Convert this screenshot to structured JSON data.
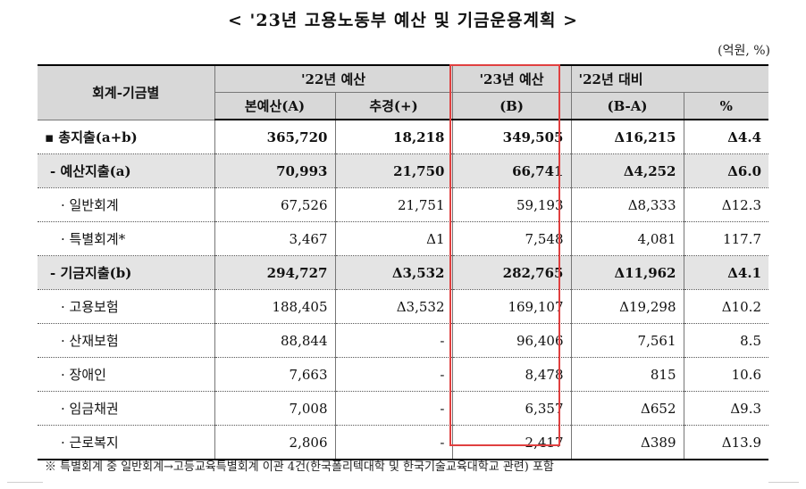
{
  "title": "< '23년 고용노동부 예산 및 기금운용계획 >",
  "unit": "(억원, %)",
  "header": {
    "row_label": "회계-기금별",
    "budget22": "'22년 예산",
    "main": "본예산(A)",
    "supplementary": "추경(+)",
    "budget23": "'23년 예산",
    "budget23_sub": "(B)",
    "compare": "'22년 대비",
    "diff": "(B-A)",
    "pct": "%"
  },
  "rows": [
    {
      "label": "▪ 총지출(a+b)",
      "main": "365,720",
      "supp": "18,218",
      "b23": "349,505",
      "diff": "Δ16,215",
      "pct": "Δ4.4"
    },
    {
      "label": "- 예산지출(a)",
      "main": "70,993",
      "supp": "21,750",
      "b23": "66,741",
      "diff": "Δ4,252",
      "pct": "Δ6.0"
    },
    {
      "label": "· 일반회계",
      "main": "67,526",
      "supp": "21,751",
      "b23": "59,193",
      "diff": "Δ8,333",
      "pct": "Δ12.3"
    },
    {
      "label": "· 특별회계*",
      "main": "3,467",
      "supp": "Δ1",
      "b23": "7,548",
      "diff": "4,081",
      "pct": "117.7"
    },
    {
      "label": "- 기금지출(b)",
      "main": "294,727",
      "supp": "Δ3,532",
      "b23": "282,765",
      "diff": "Δ11,962",
      "pct": "Δ4.1"
    },
    {
      "label": "· 고용보험",
      "main": "188,405",
      "supp": "Δ3,532",
      "b23": "169,107",
      "diff": "Δ19,298",
      "pct": "Δ10.2"
    },
    {
      "label": "· 산재보험",
      "main": "88,844",
      "supp": "-",
      "b23": "96,406",
      "diff": "7,561",
      "pct": "8.5"
    },
    {
      "label": "· 장애인",
      "main": "7,663",
      "supp": "-",
      "b23": "8,478",
      "diff": "815",
      "pct": "10.6"
    },
    {
      "label": "· 임금채권",
      "main": "7,008",
      "supp": "-",
      "b23": "6,357",
      "diff": "Δ652",
      "pct": "Δ9.3"
    },
    {
      "label": "· 근로복지",
      "main": "2,806",
      "supp": "-",
      "b23": "2,417",
      "diff": "Δ389",
      "pct": "Δ13.9"
    }
  ],
  "note": "※ 특별회계 중 일반회계→고등교육특별회계 이관 4건(한국폴리텍대학 및 한국기술교육대학교 관련) 포함",
  "colors": {
    "header_bg": "#d8d8d8",
    "shade_bg": "#e4e4e4",
    "highlight": "#e04040"
  }
}
